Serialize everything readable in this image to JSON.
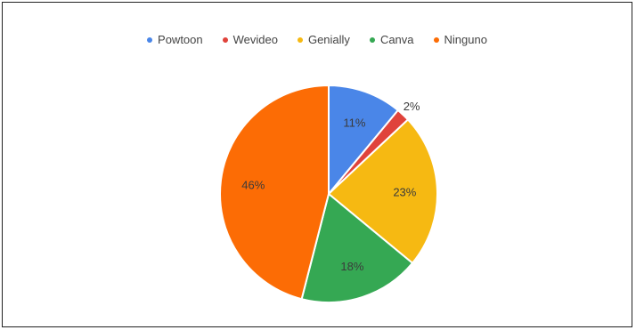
{
  "chart_data": {
    "type": "pie",
    "categories": [
      "Powtoon",
      "Wevideo",
      "Genially",
      "Canva",
      "Ninguno"
    ],
    "values": [
      11,
      2,
      23,
      18,
      46
    ],
    "labels": [
      "11%",
      "2%",
      "23%",
      "18%",
      "46%"
    ],
    "colors": [
      "#4a86e8",
      "#e0433b",
      "#f6b912",
      "#35a853",
      "#fc6c05"
    ],
    "label_colors": [
      "#3b3b3b",
      "#3b3b3b",
      "#3b3b3b",
      "#3b3b3b",
      "#3b3b3b"
    ],
    "legend_position": "top",
    "start_angle_deg": 0,
    "direction": "clockwise"
  }
}
